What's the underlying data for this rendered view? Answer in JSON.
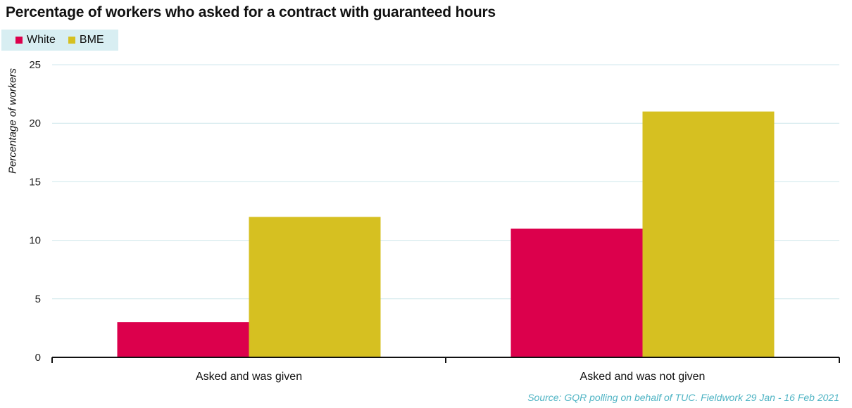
{
  "chart_data": {
    "type": "bar",
    "title": "Percentage of workers who asked for a contract with guaranteed hours",
    "xlabel": "",
    "ylabel": "Percentage of workers",
    "categories": [
      "Asked and was given",
      "Asked and was not given"
    ],
    "series": [
      {
        "name": "White",
        "values": [
          3,
          11
        ],
        "color": "#dc004c"
      },
      {
        "name": "BME",
        "values": [
          12,
          21
        ],
        "color": "#d6c021"
      }
    ],
    "ylim": [
      0,
      25
    ],
    "yticks": [
      0,
      5,
      10,
      15,
      20,
      25
    ],
    "grid": true,
    "legend_position": "top-left",
    "source": "Source: GQR polling on behalf of TUC. Fieldwork 29 Jan - 16 Feb 2021"
  }
}
